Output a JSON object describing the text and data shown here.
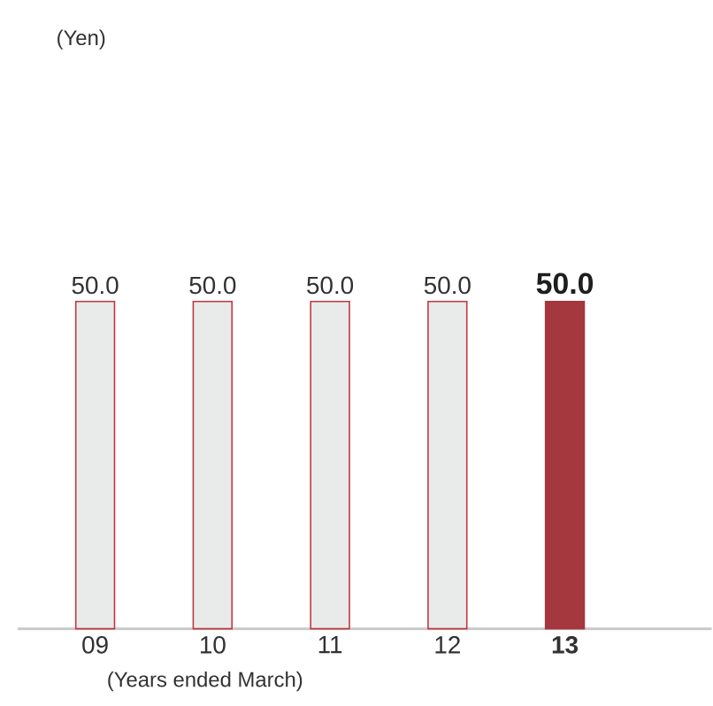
{
  "chart_data": {
    "type": "bar",
    "xlabel": "(Years ended March)",
    "annotations": [
      "(Yen)"
    ],
    "categories": [
      "09",
      "10",
      "11",
      "12",
      "13"
    ],
    "values": [
      50.0,
      50.0,
      50.0,
      50.0,
      50.0
    ],
    "value_labels": [
      "50.0",
      "50.0",
      "50.0",
      "50.0",
      "50.0"
    ],
    "colors": [
      "#e9eaea",
      "#e9eaea",
      "#e9eaea",
      "#e9eaea",
      "#a5373f"
    ],
    "tick_labels": "x"
  }
}
